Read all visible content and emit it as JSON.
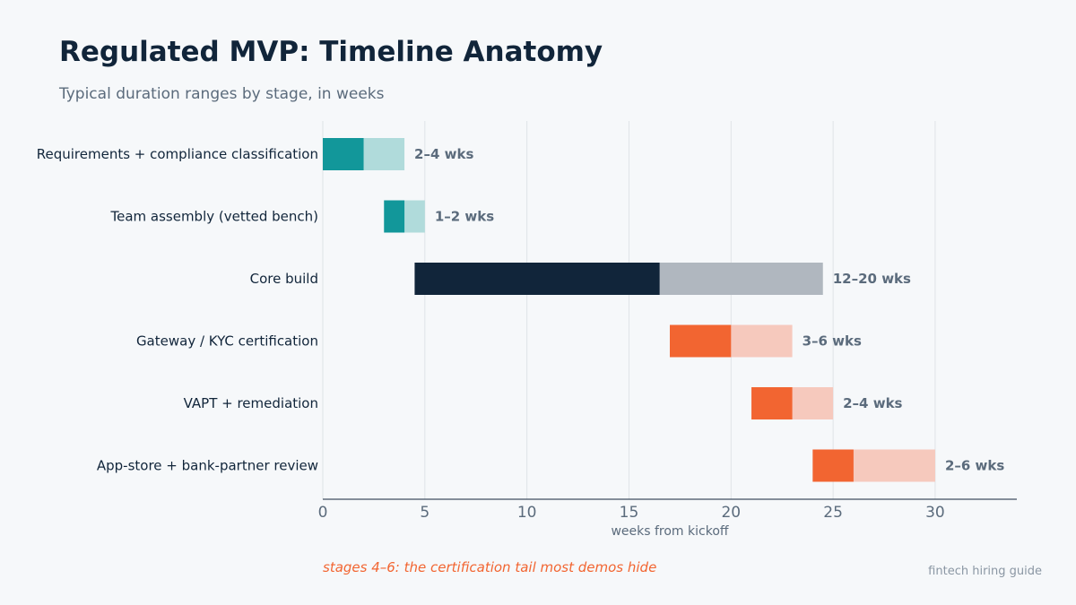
{
  "chart_data": {
    "type": "bar",
    "orientation": "horizontal-range",
    "title": "Regulated MVP: Timeline Anatomy",
    "subtitle": "Typical duration ranges by stage, in weeks",
    "xlabel": "weeks from kickoff",
    "xlim": [
      0,
      34
    ],
    "xticks": [
      0,
      5,
      10,
      15,
      20,
      25,
      30
    ],
    "grid": "vertical",
    "categories": [
      "Requirements + compliance classification",
      "Team assembly (vetted bench)",
      "Core build",
      "Gateway / KYC certification",
      "VAPT + remediation",
      "App-store + bank-partner review"
    ],
    "stages": [
      {
        "name": "Requirements + compliance classification",
        "start": 0,
        "min_end": 2,
        "max_end": 4,
        "label": "2–4 wks",
        "color": "#12979a",
        "light": "#b0dbdb"
      },
      {
        "name": "Team assembly (vetted bench)",
        "start": 3,
        "min_end": 4,
        "max_end": 5,
        "label": "1–2 wks",
        "color": "#12979a",
        "light": "#b0dbdb"
      },
      {
        "name": "Core build",
        "start": 4.5,
        "min_end": 16.5,
        "max_end": 24.5,
        "label": "12–20 wks",
        "color": "#11253a",
        "light": "#b0b7bf"
      },
      {
        "name": "Gateway / KYC certification",
        "start": 17,
        "min_end": 20,
        "max_end": 23,
        "label": "3–6 wks",
        "color": "#f26531",
        "light": "#f6c9bd"
      },
      {
        "name": "VAPT + remediation",
        "start": 21,
        "min_end": 23,
        "max_end": 25,
        "label": "2–4 wks",
        "color": "#f26531",
        "light": "#f6c9bd"
      },
      {
        "name": "App-store + bank-partner review",
        "start": 24,
        "min_end": 26,
        "max_end": 30,
        "label": "2–6 wks",
        "color": "#f26531",
        "light": "#f6c9bd"
      }
    ],
    "annotation": "stages 4–6: the certification tail most demos hide",
    "source": "fintech hiring guide"
  }
}
